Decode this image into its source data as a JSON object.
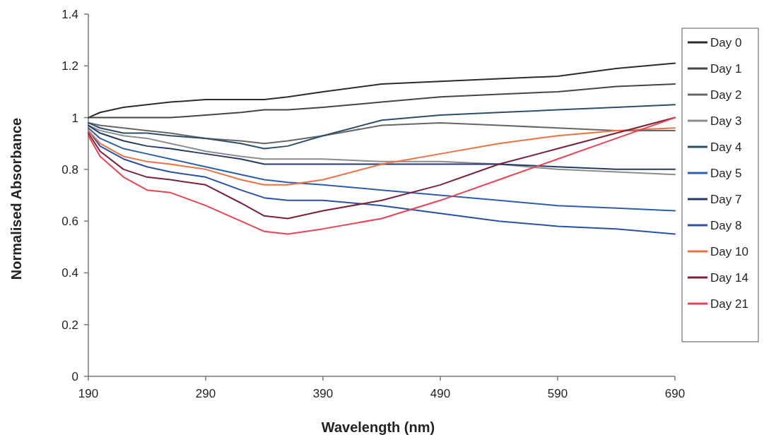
{
  "chart_data": {
    "type": "line",
    "xlabel": "Wavelength (nm)",
    "ylabel": "Normalised Absorbance",
    "x": [
      190,
      200,
      220,
      240,
      260,
      290,
      320,
      340,
      360,
      390,
      440,
      490,
      540,
      590,
      640,
      690
    ],
    "xlim": [
      190,
      690
    ],
    "xticks": [
      190,
      290,
      390,
      490,
      590,
      690
    ],
    "ylim": [
      0,
      1.4
    ],
    "yticks": [
      0,
      0.2,
      0.4,
      0.6,
      0.8,
      1,
      1.2,
      1.4
    ],
    "grid": false,
    "legend": "right",
    "marker": "none",
    "line_style": "solid",
    "series": [
      {
        "name": "Day 0",
        "color": "#2b2b2b",
        "values": [
          1.0,
          1.02,
          1.04,
          1.05,
          1.06,
          1.07,
          1.07,
          1.07,
          1.08,
          1.1,
          1.13,
          1.14,
          1.15,
          1.16,
          1.19,
          1.21
        ]
      },
      {
        "name": "Day 1",
        "color": "#444444",
        "values": [
          1.0,
          1.0,
          1.0,
          1.0,
          1.0,
          1.01,
          1.02,
          1.03,
          1.03,
          1.04,
          1.06,
          1.08,
          1.09,
          1.1,
          1.12,
          1.13
        ]
      },
      {
        "name": "Day 2",
        "color": "#666666",
        "values": [
          0.98,
          0.97,
          0.96,
          0.95,
          0.94,
          0.92,
          0.91,
          0.9,
          0.91,
          0.93,
          0.97,
          0.98,
          0.97,
          0.96,
          0.95,
          0.95
        ]
      },
      {
        "name": "Day 3",
        "color": "#8c8c8c",
        "values": [
          0.97,
          0.95,
          0.93,
          0.92,
          0.9,
          0.87,
          0.85,
          0.84,
          0.84,
          0.84,
          0.83,
          0.83,
          0.82,
          0.8,
          0.79,
          0.78
        ]
      },
      {
        "name": "Day 4",
        "color": "#2b4e6e",
        "values": [
          0.98,
          0.96,
          0.94,
          0.94,
          0.93,
          0.92,
          0.9,
          0.88,
          0.89,
          0.93,
          0.99,
          1.01,
          1.02,
          1.03,
          1.04,
          1.05
        ]
      },
      {
        "name": "Day 5",
        "color": "#2a5db0",
        "values": [
          0.96,
          0.92,
          0.88,
          0.86,
          0.84,
          0.81,
          0.78,
          0.76,
          0.75,
          0.74,
          0.72,
          0.7,
          0.68,
          0.66,
          0.65,
          0.64
        ]
      },
      {
        "name": "Day 7",
        "color": "#243a66",
        "values": [
          0.97,
          0.94,
          0.91,
          0.89,
          0.88,
          0.86,
          0.84,
          0.82,
          0.82,
          0.82,
          0.82,
          0.82,
          0.82,
          0.81,
          0.8,
          0.8
        ]
      },
      {
        "name": "Day 8",
        "color": "#2850a8",
        "values": [
          0.95,
          0.89,
          0.84,
          0.81,
          0.79,
          0.77,
          0.72,
          0.69,
          0.68,
          0.68,
          0.66,
          0.63,
          0.6,
          0.58,
          0.57,
          0.55
        ]
      },
      {
        "name": "Day 10",
        "color": "#f07040",
        "values": [
          0.95,
          0.9,
          0.85,
          0.83,
          0.82,
          0.8,
          0.76,
          0.74,
          0.74,
          0.76,
          0.82,
          0.86,
          0.9,
          0.93,
          0.95,
          0.96
        ]
      },
      {
        "name": "Day 14",
        "color": "#7a2035",
        "values": [
          0.94,
          0.87,
          0.8,
          0.77,
          0.76,
          0.74,
          0.67,
          0.62,
          0.61,
          0.64,
          0.68,
          0.74,
          0.82,
          0.88,
          0.94,
          1.0
        ]
      },
      {
        "name": "Day 21",
        "color": "#f04050",
        "values": [
          0.93,
          0.85,
          0.77,
          0.72,
          0.71,
          0.66,
          0.6,
          0.56,
          0.55,
          0.57,
          0.61,
          0.68,
          0.76,
          0.84,
          0.92,
          1.0
        ]
      }
    ]
  }
}
